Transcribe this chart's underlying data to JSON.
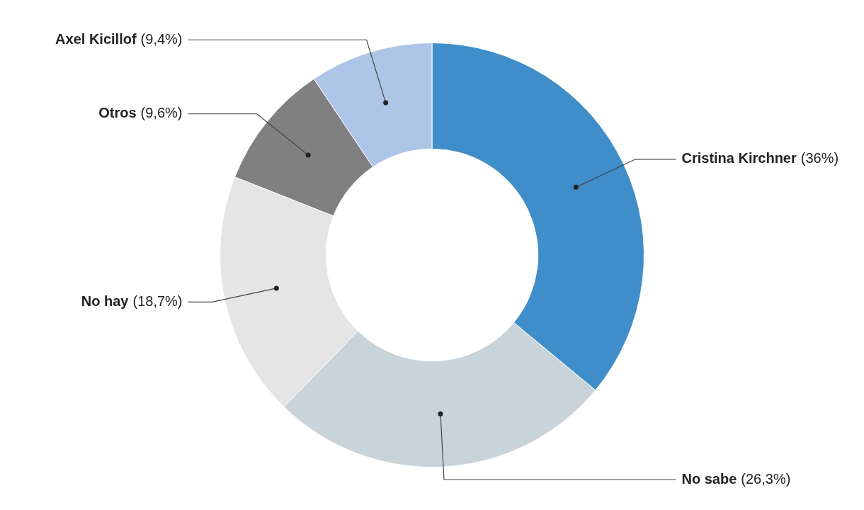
{
  "chart_data": {
    "type": "donut",
    "categories": [
      "Cristina Kirchner",
      "No sabe",
      "No hay",
      "Otros",
      "Axel Kicillof"
    ],
    "values": [
      36,
      26.3,
      18.7,
      9.6,
      9.4
    ],
    "colors": [
      "#3f8ec9",
      "#c8d4da",
      "#e5e5e5",
      "#808080",
      "#adc5e6"
    ],
    "value_labels": [
      "(36%)",
      "(26,3%)",
      "(18,7%)",
      "(9,6%)",
      "(9,4%)"
    ]
  }
}
